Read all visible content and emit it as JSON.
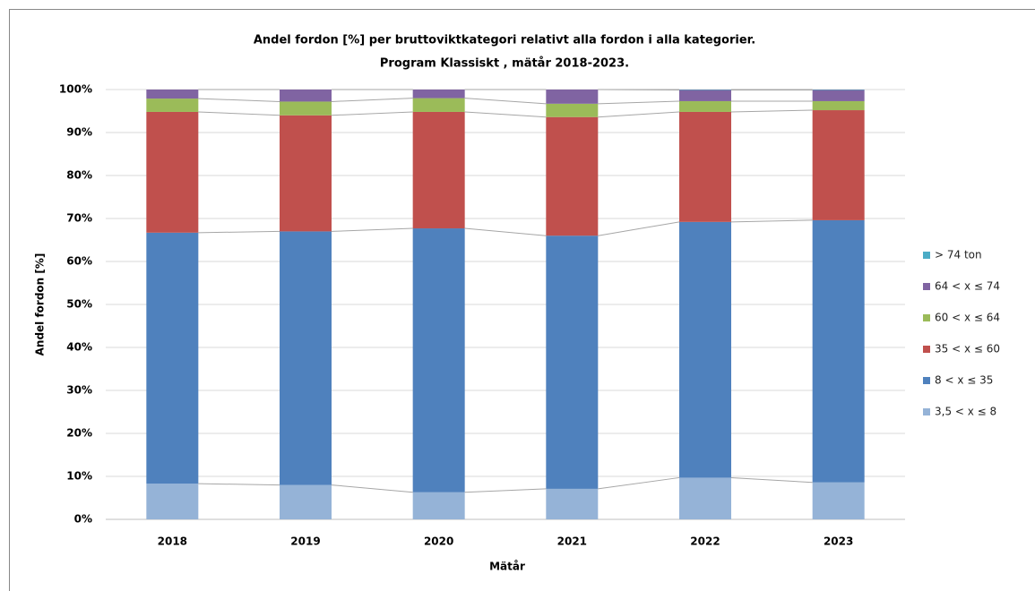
{
  "chart_data": {
    "type": "stacked_bar",
    "title": "Andel fordon [%] per bruttoviktkategori relativt alla fordon i alla kategorier.",
    "subtitle": "Program Klassiskt  , mätår 2018-2023.",
    "x_label": "Mätår",
    "y_label": "Andel fordon [%]",
    "categories": [
      "2018",
      "2019",
      "2020",
      "2021",
      "2022",
      "2023"
    ],
    "series": [
      {
        "name": "3,5 < x ≤ 8",
        "color": "#95b3d7",
        "values": [
          8.3,
          8.0,
          6.3,
          7.1,
          9.7,
          8.6
        ]
      },
      {
        "name": "8 < x ≤ 35",
        "color": "#4f81bd",
        "values": [
          58.4,
          59.0,
          61.4,
          58.9,
          59.5,
          61.0
        ]
      },
      {
        "name": "35 < x ≤ 60",
        "color": "#c0504d",
        "values": [
          28.1,
          27.0,
          27.1,
          27.6,
          25.6,
          25.6
        ]
      },
      {
        "name": "60 < x ≤ 64",
        "color": "#9bbb59",
        "values": [
          3.1,
          3.2,
          3.2,
          3.1,
          2.5,
          2.1
        ]
      },
      {
        "name": "64 < x ≤ 74",
        "color": "#8064a2",
        "values": [
          2.1,
          2.8,
          2.0,
          3.3,
          2.6,
          2.6
        ]
      },
      {
        "name": "> 74 ton",
        "color": "#4bacc6",
        "values": [
          0,
          0,
          0,
          0,
          0.1,
          0.1
        ]
      }
    ],
    "ylim": [
      0,
      100
    ],
    "yticks": [
      {
        "value": 0,
        "label": "0%"
      },
      {
        "value": 10,
        "label": "10%"
      },
      {
        "value": 20,
        "label": "20%"
      },
      {
        "value": 30,
        "label": "30%"
      },
      {
        "value": 40,
        "label": "40%"
      },
      {
        "value": 50,
        "label": "50%"
      },
      {
        "value": 60,
        "label": "60%"
      },
      {
        "value": 70,
        "label": "70%"
      },
      {
        "value": 80,
        "label": "80%"
      },
      {
        "value": 90,
        "label": "90%"
      },
      {
        "value": 100,
        "label": "100%"
      }
    ],
    "grid": true,
    "legend": "right"
  }
}
